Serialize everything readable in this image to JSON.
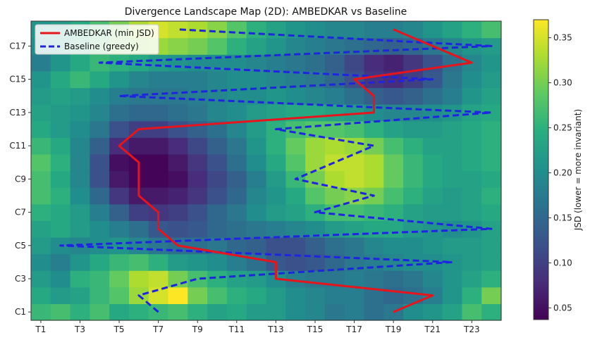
{
  "chart_data": {
    "type": "heatmap",
    "title": "Divergence Landscape Map (2D): AMBEDKAR vs Baseline",
    "xlabel": "",
    "ylabel": "",
    "x_tick_labels": [
      "T1",
      "T3",
      "T5",
      "T7",
      "T9",
      "T11",
      "T13",
      "T15",
      "T17",
      "T19",
      "T21",
      "T23"
    ],
    "x_tick_values": [
      1,
      3,
      5,
      7,
      9,
      11,
      13,
      15,
      17,
      19,
      21,
      23
    ],
    "y_tick_labels": [
      "C1",
      "C3",
      "C5",
      "C7",
      "C9",
      "C11",
      "C13",
      "C15",
      "C17"
    ],
    "y_tick_values": [
      1,
      3,
      5,
      7,
      9,
      11,
      13,
      15,
      17
    ],
    "x_range": [
      0.5,
      24.5
    ],
    "y_range": [
      0.5,
      18.5
    ],
    "colorscale": "viridis",
    "colorbar": {
      "label": "JSD (lower = more invariant)",
      "range": [
        0.037,
        0.37
      ],
      "ticks": [
        0.05,
        0.1,
        0.15,
        0.2,
        0.25,
        0.3,
        0.35
      ],
      "tick_labels": [
        "0.05",
        "0.10",
        "0.15",
        "0.20",
        "0.25",
        "0.30",
        "0.35"
      ]
    },
    "grid": false,
    "legend_position": "top-left",
    "series": [
      {
        "name": "AMBEDKAR (min JSD)",
        "style": "solid",
        "color": "#e8141b",
        "x": [
          19,
          21,
          13,
          13,
          8,
          7,
          7,
          6,
          6,
          5,
          6,
          18,
          18,
          17,
          23,
          21,
          19
        ],
        "y": [
          1,
          2,
          3,
          4,
          5,
          6,
          7,
          8,
          10,
          11,
          12,
          13,
          14,
          15,
          16,
          17,
          18
        ]
      },
      {
        "name": "Baseline (greedy)",
        "style": "dashed",
        "color": "#1f24e0",
        "x": [
          7,
          6,
          9,
          22,
          2,
          24,
          15,
          18,
          14,
          18,
          13,
          24,
          5,
          21,
          4,
          24,
          8
        ],
        "y": [
          1,
          2,
          3,
          4,
          5,
          6,
          7,
          8,
          9,
          11,
          12,
          13,
          14,
          15,
          16,
          17,
          18
        ]
      }
    ],
    "values": [
      [
        0.26,
        0.27,
        0.25,
        0.27,
        0.24,
        0.25,
        0.26,
        0.27,
        0.25,
        0.23,
        0.24,
        0.22,
        0.22,
        0.2,
        0.19,
        0.17,
        0.18,
        0.16,
        0.17,
        0.2,
        0.21,
        0.23,
        0.27,
        0.25
      ],
      [
        0.24,
        0.22,
        0.23,
        0.26,
        0.28,
        0.32,
        0.35,
        0.37,
        0.3,
        0.27,
        0.25,
        0.24,
        0.22,
        0.2,
        0.19,
        0.18,
        0.18,
        0.16,
        0.15,
        0.16,
        0.18,
        0.21,
        0.25,
        0.3
      ],
      [
        0.22,
        0.2,
        0.25,
        0.26,
        0.29,
        0.33,
        0.34,
        0.3,
        0.27,
        0.25,
        0.23,
        0.22,
        0.2,
        0.18,
        0.17,
        0.17,
        0.18,
        0.17,
        0.16,
        0.17,
        0.19,
        0.21,
        0.23,
        0.25
      ],
      [
        0.2,
        0.18,
        0.21,
        0.24,
        0.26,
        0.27,
        0.25,
        0.22,
        0.21,
        0.2,
        0.18,
        0.16,
        0.13,
        0.12,
        0.13,
        0.15,
        0.17,
        0.18,
        0.19,
        0.2,
        0.2,
        0.21,
        0.22,
        0.23
      ],
      [
        0.22,
        0.2,
        0.19,
        0.2,
        0.21,
        0.19,
        0.17,
        0.16,
        0.16,
        0.17,
        0.15,
        0.14,
        0.12,
        0.12,
        0.14,
        0.16,
        0.17,
        0.19,
        0.2,
        0.2,
        0.21,
        0.22,
        0.22,
        0.23
      ],
      [
        0.23,
        0.24,
        0.22,
        0.2,
        0.18,
        0.16,
        0.13,
        0.12,
        0.13,
        0.15,
        0.16,
        0.17,
        0.18,
        0.19,
        0.2,
        0.22,
        0.23,
        0.24,
        0.24,
        0.22,
        0.21,
        0.2,
        0.21,
        0.23
      ],
      [
        0.25,
        0.24,
        0.22,
        0.18,
        0.14,
        0.1,
        0.09,
        0.1,
        0.12,
        0.15,
        0.17,
        0.2,
        0.22,
        0.23,
        0.25,
        0.27,
        0.27,
        0.26,
        0.25,
        0.23,
        0.22,
        0.22,
        0.23,
        0.24
      ],
      [
        0.27,
        0.25,
        0.2,
        0.15,
        0.09,
        0.06,
        0.06,
        0.07,
        0.09,
        0.12,
        0.15,
        0.19,
        0.21,
        0.24,
        0.28,
        0.3,
        0.31,
        0.3,
        0.27,
        0.25,
        0.23,
        0.22,
        0.23,
        0.25
      ],
      [
        0.27,
        0.24,
        0.19,
        0.12,
        0.06,
        0.04,
        0.04,
        0.05,
        0.08,
        0.11,
        0.14,
        0.18,
        0.22,
        0.26,
        0.3,
        0.33,
        0.34,
        0.33,
        0.29,
        0.26,
        0.24,
        0.23,
        0.23,
        0.24
      ],
      [
        0.28,
        0.25,
        0.19,
        0.12,
        0.05,
        0.04,
        0.04,
        0.06,
        0.09,
        0.12,
        0.16,
        0.2,
        0.24,
        0.28,
        0.32,
        0.34,
        0.34,
        0.33,
        0.29,
        0.26,
        0.24,
        0.23,
        0.24,
        0.25
      ],
      [
        0.26,
        0.24,
        0.19,
        0.14,
        0.08,
        0.06,
        0.06,
        0.08,
        0.11,
        0.14,
        0.17,
        0.21,
        0.25,
        0.29,
        0.32,
        0.33,
        0.32,
        0.3,
        0.27,
        0.25,
        0.23,
        0.23,
        0.24,
        0.25
      ],
      [
        0.24,
        0.22,
        0.2,
        0.17,
        0.12,
        0.1,
        0.1,
        0.12,
        0.14,
        0.16,
        0.19,
        0.22,
        0.25,
        0.27,
        0.28,
        0.28,
        0.27,
        0.25,
        0.23,
        0.22,
        0.22,
        0.23,
        0.24,
        0.25
      ],
      [
        0.23,
        0.22,
        0.21,
        0.19,
        0.16,
        0.15,
        0.15,
        0.16,
        0.17,
        0.19,
        0.2,
        0.22,
        0.23,
        0.24,
        0.24,
        0.23,
        0.22,
        0.2,
        0.19,
        0.19,
        0.2,
        0.21,
        0.23,
        0.24
      ],
      [
        0.22,
        0.23,
        0.22,
        0.2,
        0.18,
        0.17,
        0.17,
        0.17,
        0.18,
        0.19,
        0.2,
        0.2,
        0.21,
        0.2,
        0.19,
        0.18,
        0.16,
        0.14,
        0.13,
        0.14,
        0.16,
        0.18,
        0.21,
        0.23
      ],
      [
        0.21,
        0.24,
        0.26,
        0.24,
        0.21,
        0.19,
        0.18,
        0.18,
        0.18,
        0.19,
        0.2,
        0.2,
        0.19,
        0.18,
        0.17,
        0.15,
        0.12,
        0.09,
        0.08,
        0.1,
        0.13,
        0.17,
        0.2,
        0.22
      ],
      [
        0.18,
        0.21,
        0.24,
        0.26,
        0.25,
        0.24,
        0.22,
        0.21,
        0.2,
        0.2,
        0.2,
        0.19,
        0.18,
        0.17,
        0.16,
        0.14,
        0.11,
        0.08,
        0.07,
        0.09,
        0.12,
        0.16,
        0.19,
        0.21
      ],
      [
        0.2,
        0.22,
        0.25,
        0.28,
        0.3,
        0.31,
        0.32,
        0.31,
        0.3,
        0.28,
        0.25,
        0.23,
        0.21,
        0.19,
        0.18,
        0.17,
        0.16,
        0.15,
        0.14,
        0.15,
        0.17,
        0.19,
        0.21,
        0.22
      ],
      [
        0.21,
        0.22,
        0.24,
        0.27,
        0.3,
        0.33,
        0.35,
        0.34,
        0.33,
        0.31,
        0.28,
        0.25,
        0.23,
        0.21,
        0.2,
        0.19,
        0.19,
        0.18,
        0.18,
        0.19,
        0.21,
        0.23,
        0.25,
        0.27
      ]
    ]
  }
}
